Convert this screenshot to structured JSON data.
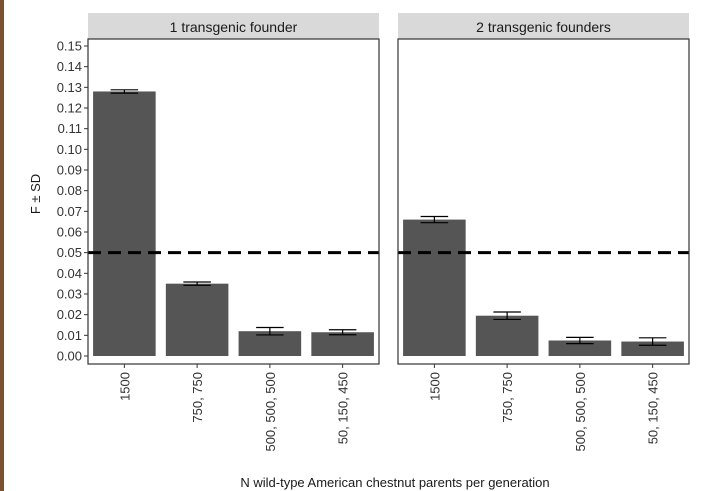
{
  "colors": {
    "bar": "#555555",
    "panel_border": "#333333",
    "strip_fill": "#d9d9d9",
    "reference_line": "#000000",
    "frame_left": "#7a5230"
  },
  "chart_data": {
    "type": "bar",
    "xlabel": "N wild-type American chestnut parents per generation",
    "ylabel": "F ± SD",
    "ylim": [
      0,
      0.15
    ],
    "yticks": [
      "0.00",
      "0.01",
      "0.02",
      "0.03",
      "0.04",
      "0.05",
      "0.06",
      "0.07",
      "0.08",
      "0.09",
      "0.10",
      "0.11",
      "0.12",
      "0.13",
      "0.14",
      "0.15"
    ],
    "grid": false,
    "reference_line": {
      "y": 0.05,
      "style": "dashed"
    },
    "categories": [
      "1500",
      "750, 750",
      "500, 500, 500",
      "50, 150, 450"
    ],
    "panels": [
      {
        "title": "1 transgenic founder",
        "values": [
          0.128,
          0.035,
          0.012,
          0.0115
        ],
        "sd": [
          0.0008,
          0.0008,
          0.0018,
          0.0012
        ]
      },
      {
        "title": "2 transgenic founders",
        "values": [
          0.066,
          0.0195,
          0.0075,
          0.007
        ],
        "sd": [
          0.0015,
          0.0018,
          0.0015,
          0.0018
        ]
      }
    ]
  }
}
